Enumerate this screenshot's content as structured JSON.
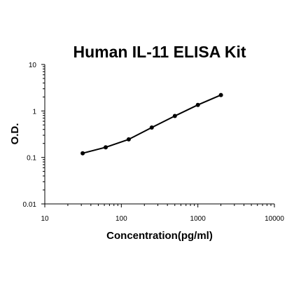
{
  "chart_data": {
    "type": "line",
    "title": "Human IL-11 ELISA Kit",
    "xlabel": "Concentration(pg/ml)",
    "ylabel": "O.D.",
    "x_scale": "log",
    "y_scale": "log",
    "xlim": [
      10,
      10000
    ],
    "ylim": [
      0.01,
      10
    ],
    "x_ticks": [
      "10",
      "100",
      "1000",
      "10000"
    ],
    "y_ticks": [
      "0.01",
      "0.1",
      "1",
      "10"
    ],
    "grid": false,
    "legend": "none",
    "series": [
      {
        "x": [
          31.25,
          62.5,
          125,
          250,
          500,
          1000,
          2000
        ],
        "y": [
          0.123,
          0.165,
          0.245,
          0.44,
          0.78,
          1.35,
          2.2
        ]
      }
    ],
    "colors": {
      "line": "#000000",
      "marker": "#000000",
      "axis": "#000000"
    }
  }
}
